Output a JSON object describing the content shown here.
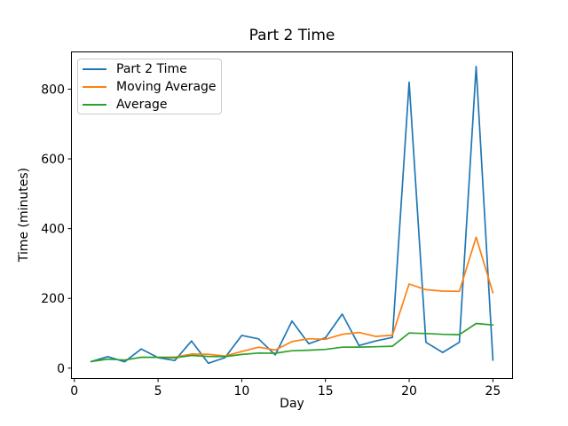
{
  "chart_data": {
    "type": "line",
    "title": "Part 2 Time",
    "xlabel": "Day",
    "ylabel": "Time (minutes)",
    "xlim": [
      -0.2,
      26.2
    ],
    "ylim": [
      -31,
      908
    ],
    "xticks": [
      0,
      5,
      10,
      15,
      20,
      25
    ],
    "yticks": [
      0,
      200,
      400,
      600,
      800
    ],
    "grid": false,
    "legend": {
      "position": "upper-left",
      "entries": [
        "Part 2 Time",
        "Moving Average",
        "Average"
      ]
    },
    "series": [
      {
        "name": "Part 2 Time",
        "color": "#1f77b4",
        "x": [
          1,
          2,
          3,
          4,
          5,
          6,
          7,
          8,
          9,
          10,
          11,
          12,
          13,
          14,
          15,
          16,
          17,
          18,
          19,
          20,
          21,
          22,
          23,
          24,
          25
        ],
        "values": [
          19,
          33,
          18,
          55,
          30,
          22,
          78,
          14,
          30,
          94,
          84,
          38,
          135,
          70,
          87,
          155,
          65,
          78,
          88,
          820,
          74,
          45,
          74,
          865,
          23
        ]
      },
      {
        "name": "Moving Average",
        "color": "#ff7f0e",
        "x": [
          5,
          6,
          7,
          8,
          9,
          10,
          11,
          12,
          13,
          14,
          15,
          16,
          17,
          18,
          19,
          20,
          21,
          22,
          23,
          24,
          25
        ],
        "values": [
          31.0,
          31.6,
          40.6,
          39.8,
          34.8,
          47.6,
          60.0,
          52.0,
          76.2,
          84.2,
          82.8,
          97.0,
          102.4,
          91.0,
          94.6,
          241.2,
          225.0,
          221.0,
          220.2,
          375.6,
          216.2
        ]
      },
      {
        "name": "Average",
        "color": "#2ca02c",
        "x": [
          1,
          2,
          3,
          4,
          5,
          6,
          7,
          8,
          9,
          10,
          11,
          12,
          13,
          14,
          15,
          16,
          17,
          18,
          19,
          20,
          21,
          22,
          23,
          24,
          25
        ],
        "values": [
          19.0,
          26.0,
          23.3,
          31.3,
          31.0,
          29.5,
          36.4,
          33.6,
          33.2,
          39.3,
          43.4,
          42.9,
          50.0,
          51.4,
          53.8,
          60.1,
          60.4,
          61.4,
          62.8,
          100.7,
          99.4,
          96.9,
          95.9,
          128.0,
          123.8
        ]
      }
    ]
  }
}
